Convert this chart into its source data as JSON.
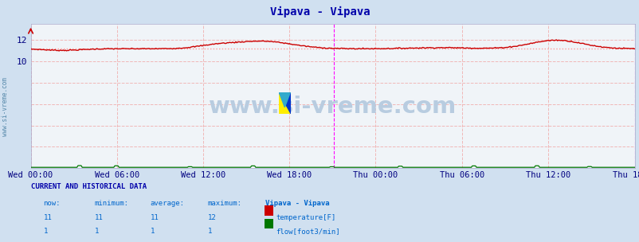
{
  "title": "Vipava - Vipava",
  "title_color": "#0000aa",
  "bg_color": "#d0e0f0",
  "plot_bg_color": "#f0f4f8",
  "x_labels": [
    "Wed 00:00",
    "Wed 06:00",
    "Wed 12:00",
    "Wed 18:00",
    "Thu 00:00",
    "Thu 06:00",
    "Thu 12:00",
    "Thu 18:00"
  ],
  "x_ticks_norm": [
    0.0,
    0.1429,
    0.2857,
    0.4286,
    0.5714,
    0.7143,
    0.8571,
    1.0
  ],
  "y_tick_labels": [
    "10",
    "12"
  ],
  "y_tick_vals": [
    10,
    12
  ],
  "ylim": [
    0,
    13.5
  ],
  "watermark": "www.si-vreme.com",
  "watermark_color": "#b8cce0",
  "temp_color": "#cc0000",
  "flow_color": "#007700",
  "avg_color": "#ff9999",
  "vline_color": "#ff00ff",
  "grid_color": "#f0b8b8",
  "sidebar_text": "www.si-vreme.com",
  "current_and_historical": "CURRENT AND HISTORICAL DATA",
  "table_headers": [
    "now:",
    "minimum:",
    "average:",
    "maximum:",
    "Vipava - Vipava"
  ],
  "table_row1": [
    "11",
    "11",
    "11",
    "12",
    "temperature[F]"
  ],
  "table_row2": [
    "1",
    "1",
    "1",
    "1",
    "flow[foot3/min]"
  ],
  "n_points": 576,
  "vline_idx": 288
}
